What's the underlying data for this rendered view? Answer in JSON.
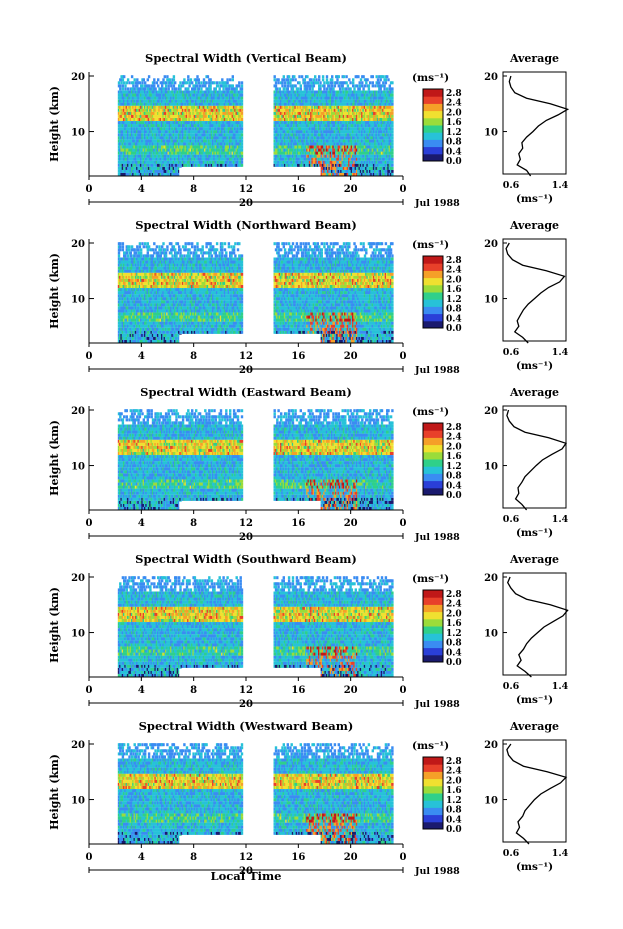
{
  "figure": {
    "xlabel": "Local Time",
    "ylabel": "Height (km)",
    "date_label": "Jul 1988",
    "day_label": "20",
    "colorbar_unit": "(ms⁻¹)",
    "colorbar_ticks": [
      "2.8",
      "2.4",
      "2.0",
      "1.6",
      "1.2",
      "0.8",
      "0.4",
      "0.0"
    ],
    "avg_title": "Average",
    "avg_xticks": [
      "0.6",
      "1.4"
    ],
    "avg_unit": "(ms⁻¹)",
    "xticks": [
      "0",
      "4",
      "8",
      "12",
      "16",
      "20",
      "0"
    ],
    "yticks": [
      "20",
      "10"
    ]
  },
  "colors": {
    "scale": [
      "#1a1a6e",
      "#2a3fd8",
      "#3a8cf2",
      "#27c2d8",
      "#2fd08a",
      "#9bdc3a",
      "#f0e030",
      "#f5a028",
      "#e8402a",
      "#c01818"
    ]
  },
  "chart_data": [
    {
      "type": "heatmap",
      "title": "Spectral Width (Vertical Beam)",
      "beam": "Vertical",
      "x_range": [
        0,
        24
      ],
      "y_range": [
        2,
        20
      ],
      "value_range": [
        0.0,
        3.0
      ],
      "average_profile": {
        "xlim": [
          0.6,
          1.4
        ],
        "height": [
          2,
          3,
          4,
          5,
          6,
          7,
          8,
          9,
          10,
          11,
          12,
          13,
          14,
          15,
          16,
          17,
          18,
          19,
          20
        ],
        "width": [
          0.95,
          0.9,
          0.78,
          0.82,
          0.8,
          0.85,
          0.84,
          0.9,
          0.98,
          1.05,
          1.15,
          1.3,
          1.42,
          1.2,
          0.9,
          0.75,
          0.7,
          0.68,
          0.7
        ]
      }
    },
    {
      "type": "heatmap",
      "title": "Spectral Width (Northward Beam)",
      "beam": "Northward",
      "x_range": [
        0,
        24
      ],
      "y_range": [
        2,
        20
      ],
      "value_range": [
        0.0,
        3.0
      ],
      "average_profile": {
        "xlim": [
          0.6,
          1.4
        ],
        "height": [
          2,
          3,
          4,
          5,
          6,
          7,
          8,
          9,
          10,
          11,
          12,
          13,
          14,
          15,
          16,
          17,
          18,
          19,
          20
        ],
        "width": [
          0.92,
          0.85,
          0.75,
          0.8,
          0.78,
          0.82,
          0.86,
          0.92,
          1.0,
          1.08,
          1.18,
          1.32,
          1.38,
          1.15,
          0.85,
          0.72,
          0.66,
          0.64,
          0.68
        ]
      }
    },
    {
      "type": "heatmap",
      "title": "Spectral Width (Eastward Beam)",
      "beam": "Eastward",
      "x_range": [
        0,
        24
      ],
      "y_range": [
        2,
        20
      ],
      "value_range": [
        0.0,
        3.0
      ],
      "average_profile": {
        "xlim": [
          0.6,
          1.4
        ],
        "height": [
          2,
          3,
          4,
          5,
          6,
          7,
          8,
          9,
          10,
          11,
          12,
          13,
          14,
          15,
          16,
          17,
          18,
          19,
          20
        ],
        "width": [
          0.9,
          0.84,
          0.76,
          0.8,
          0.79,
          0.84,
          0.88,
          0.95,
          1.02,
          1.1,
          1.22,
          1.35,
          1.4,
          1.18,
          0.88,
          0.74,
          0.68,
          0.65,
          0.67
        ]
      }
    },
    {
      "type": "heatmap",
      "title": "Spectral Width (Southward Beam)",
      "beam": "Southward",
      "x_range": [
        0,
        24
      ],
      "y_range": [
        2,
        20
      ],
      "value_range": [
        0.0,
        3.0
      ],
      "average_profile": {
        "xlim": [
          0.6,
          1.4
        ],
        "height": [
          2,
          3,
          4,
          5,
          6,
          7,
          8,
          9,
          10,
          11,
          12,
          13,
          14,
          15,
          16,
          17,
          18,
          19,
          20
        ],
        "width": [
          0.96,
          0.88,
          0.78,
          0.83,
          0.8,
          0.86,
          0.9,
          0.96,
          1.04,
          1.12,
          1.24,
          1.36,
          1.42,
          1.2,
          0.9,
          0.76,
          0.7,
          0.66,
          0.69
        ]
      }
    },
    {
      "type": "heatmap",
      "title": "Spectral Width (Westward Beam)",
      "beam": "Westward",
      "x_range": [
        0,
        24
      ],
      "y_range": [
        2,
        20
      ],
      "value_range": [
        0.0,
        3.0
      ],
      "average_profile": {
        "xlim": [
          0.6,
          1.4
        ],
        "height": [
          2,
          3,
          4,
          5,
          6,
          7,
          8,
          9,
          10,
          11,
          12,
          13,
          14,
          15,
          16,
          17,
          18,
          19,
          20
        ],
        "width": [
          0.93,
          0.86,
          0.77,
          0.81,
          0.79,
          0.85,
          0.88,
          0.94,
          1.0,
          1.08,
          1.2,
          1.33,
          1.4,
          1.16,
          0.86,
          0.73,
          0.67,
          0.65,
          0.7
        ]
      }
    }
  ]
}
